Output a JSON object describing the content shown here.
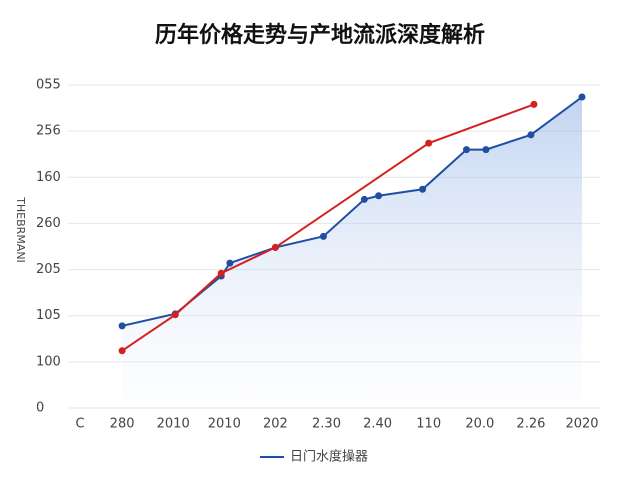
{
  "chart_data": {
    "type": "line",
    "title": "历年价格走势与产地流派深度解析",
    "y_label": "THEBRMANI",
    "xlim": [
      0,
      10
    ],
    "xticks": [
      {
        "value": 0,
        "label": "C"
      },
      {
        "value": 1,
        "label": "280"
      },
      {
        "value": 2,
        "label": "2010"
      },
      {
        "value": 3,
        "label": "2010"
      },
      {
        "value": 4,
        "label": "202"
      },
      {
        "value": 5,
        "label": "2.30"
      },
      {
        "value": 6,
        "label": "2.40"
      },
      {
        "value": 7,
        "label": "110"
      },
      {
        "value": 8,
        "label": "20.0"
      },
      {
        "value": 9,
        "label": "2.26"
      },
      {
        "value": 10,
        "label": "2020"
      }
    ],
    "ylim": [
      0,
      350
    ],
    "yticks": [
      0,
      {
        "value": 50,
        "label": "100"
      },
      {
        "value": 100,
        "label": "105"
      },
      {
        "value": 150,
        "label": "205"
      },
      {
        "value": 200,
        "label": "260"
      },
      {
        "value": 250,
        "label": "160"
      },
      {
        "value": 300,
        "label": "256"
      },
      {
        "value": 350,
        "label": "055"
      }
    ],
    "grid": true,
    "series": [
      {
        "name": "日门水度操器",
        "color": "#1f4ea3",
        "x": [
          1,
          2.04,
          2.94,
          3.11,
          4,
          4.94,
          5.74,
          6.02,
          6.88,
          7.74,
          8.12,
          9,
          10
        ],
        "values": [
          89,
          102,
          143,
          157,
          174,
          186,
          226,
          230,
          237,
          280,
          280,
          296,
          337
        ]
      },
      {
        "color": "#d42020",
        "x": [
          1,
          2.04,
          2.94,
          4,
          7,
          9.06
        ],
        "values": [
          62,
          101,
          146,
          174,
          287,
          329
        ]
      }
    ]
  }
}
